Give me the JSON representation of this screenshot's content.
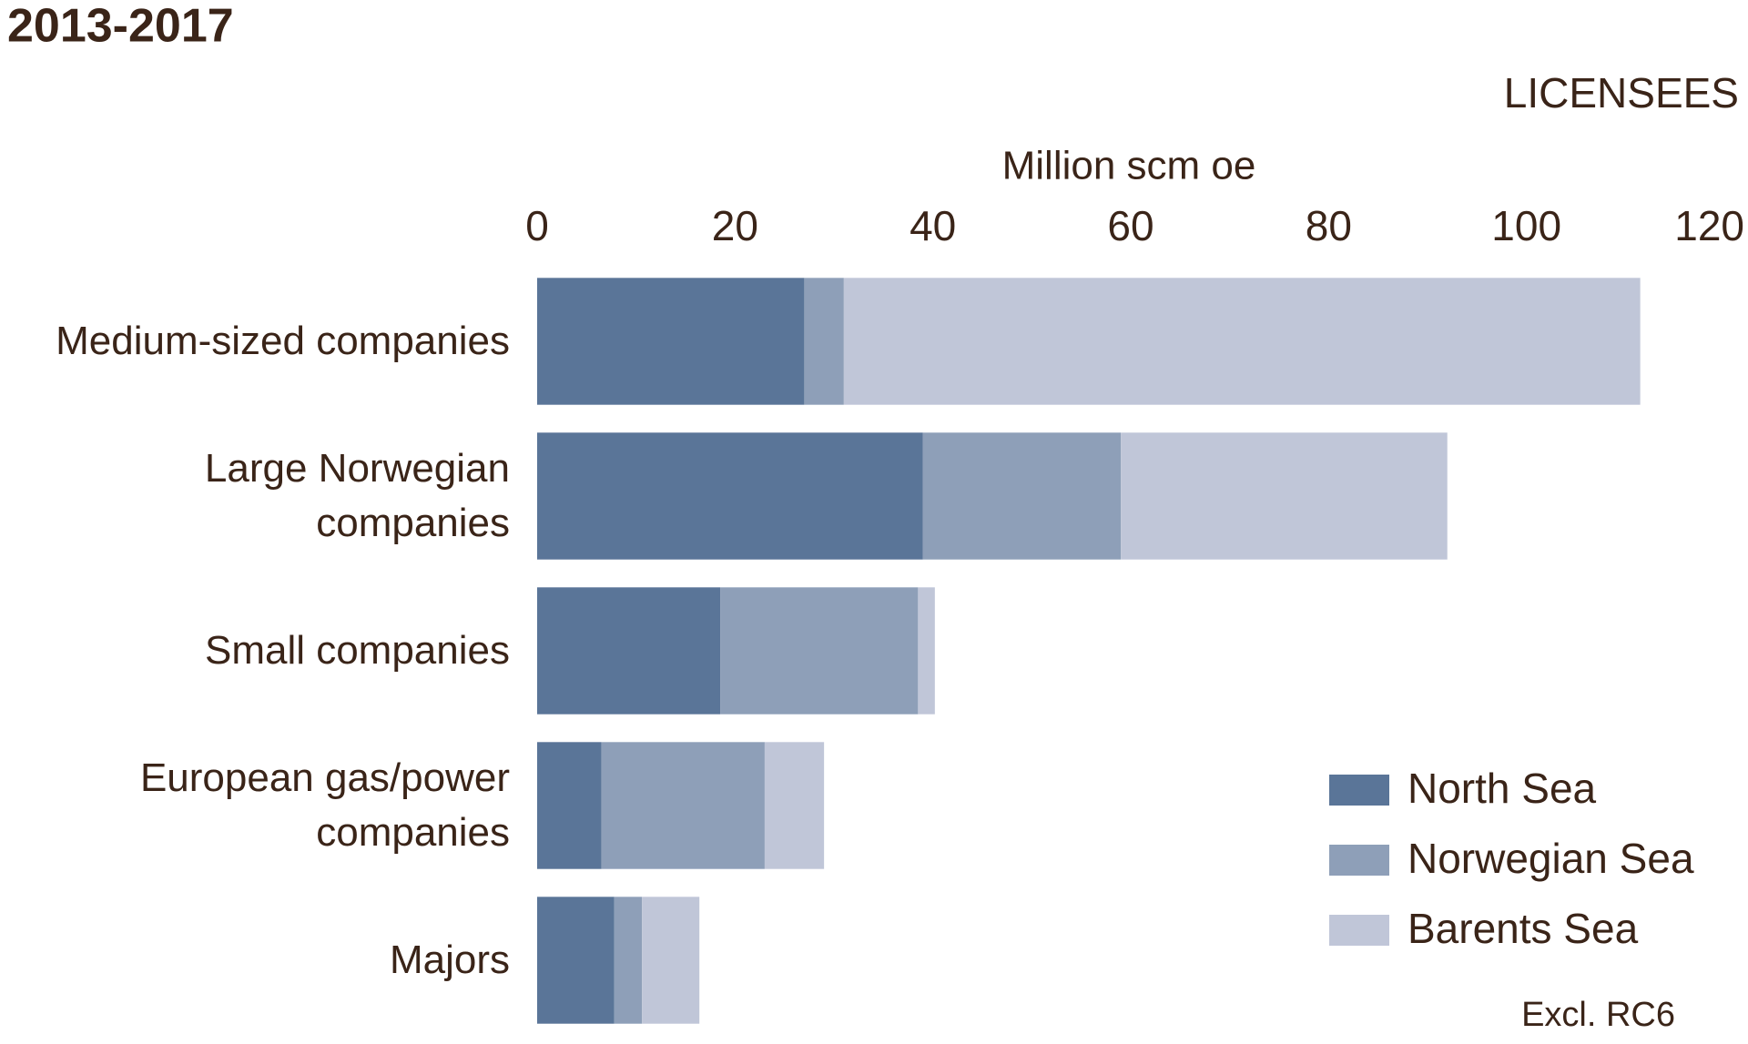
{
  "chart_data": {
    "type": "stacked_barh",
    "title": "2013-2017",
    "subtitle": "LICENSEES",
    "x_label": "Million scm oe",
    "note": "Excl. RC6",
    "categories": [
      "Medium-sized companies",
      "Large Norwegian companies",
      "Small companies",
      "European gas/power companies",
      "Majors"
    ],
    "series": [
      {
        "name": "North Sea",
        "color": "#5a7598",
        "values": [
          27,
          39,
          18.5,
          6.5,
          7.8
        ]
      },
      {
        "name": "Norwegian Sea",
        "color": "#8e9fb8",
        "values": [
          4,
          20,
          20,
          16.5,
          2.8
        ]
      },
      {
        "name": "Barents Sea",
        "color": "#c0c6d8",
        "values": [
          80.5,
          33,
          1.7,
          6,
          5.8
        ]
      }
    ],
    "xlim": [
      0,
      120
    ],
    "xticks": [
      0,
      20,
      40,
      60,
      80,
      100,
      120
    ],
    "grid": false,
    "legend": "lower right"
  }
}
